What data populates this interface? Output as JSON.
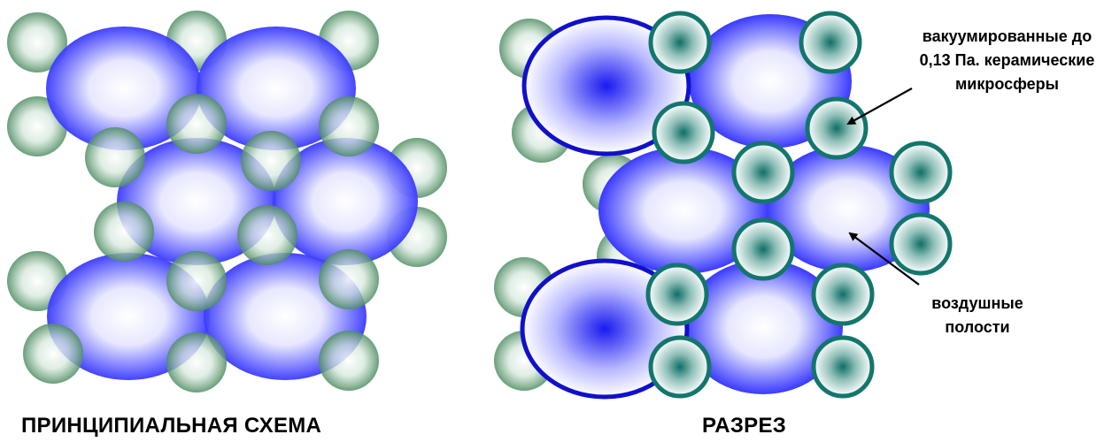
{
  "captions": {
    "schematic": "ПРИНЦИПИАЛЬНАЯ СХЕМА",
    "section": "РАЗРЕЗ"
  },
  "annotations": {
    "microspheres": {
      "lines": [
        "вакуумированные до",
        "0,13 Па. керамические",
        "микросферы"
      ]
    },
    "air_cavities": {
      "lines": [
        "воздушные",
        "полости"
      ]
    }
  },
  "colors": {
    "blue_sphere": "#3a3aff",
    "blue_outline": "#1010cc",
    "green_sphere": "#5f9a72",
    "teal_sphere": "#1a7a72",
    "teal_outline": "#13766c"
  }
}
